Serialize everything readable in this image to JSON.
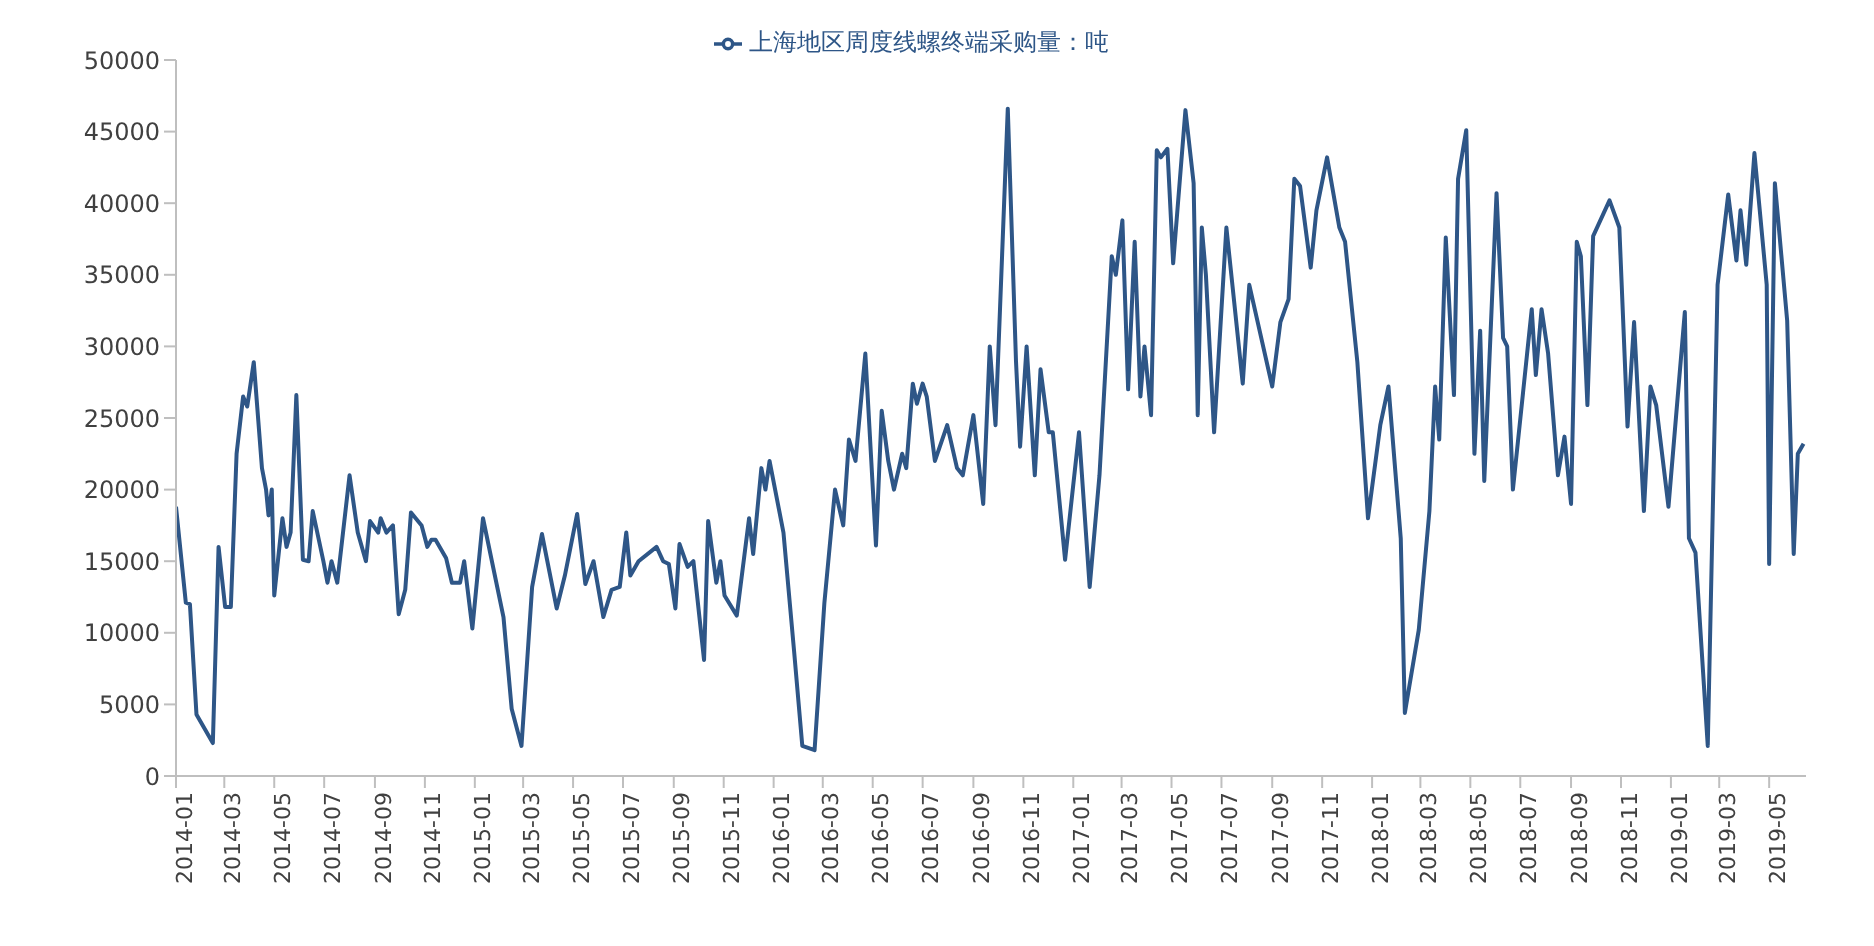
{
  "chart_data": {
    "type": "line",
    "legend": "top",
    "marker": "none",
    "line_style": "solid",
    "grid": false,
    "xlim": [
      "2014-01-01",
      "2019-06-15"
    ],
    "xticks": [
      "2014-01",
      "2014-03",
      "2014-05",
      "2014-07",
      "2014-09",
      "2014-11",
      "2015-01",
      "2015-03",
      "2015-05",
      "2015-07",
      "2015-09",
      "2015-11",
      "2016-01",
      "2016-03",
      "2016-05",
      "2016-07",
      "2016-09",
      "2016-11",
      "2017-01",
      "2017-03",
      "2017-05",
      "2017-07",
      "2017-09",
      "2017-11",
      "2018-01",
      "2018-03",
      "2018-05",
      "2018-07",
      "2018-09",
      "2018-11",
      "2019-01",
      "2019-03",
      "2019-05"
    ],
    "ylim": [
      0,
      50000
    ],
    "yticks": [
      0,
      5000,
      10000,
      15000,
      20000,
      25000,
      30000,
      35000,
      40000,
      45000,
      50000
    ],
    "series": [
      {
        "name": "上海地区周度线螺终端采购量：吨",
        "color": "#2e5687",
        "x": [
          "2014-01-01",
          "2014-01-13",
          "2014-01-18",
          "2014-01-26",
          "2014-02-15",
          "2014-02-22",
          "2014-03-02",
          "2014-03-09",
          "2014-03-16",
          "2014-03-24",
          "2014-03-29",
          "2014-04-06",
          "2014-04-16",
          "2014-04-21",
          "2014-04-24",
          "2014-04-28",
          "2014-05-01",
          "2014-05-11",
          "2014-05-16",
          "2014-05-21",
          "2014-05-28",
          "2014-06-05",
          "2014-06-12",
          "2014-06-17",
          "2014-06-30",
          "2014-07-05",
          "2014-07-10",
          "2014-07-17",
          "2014-08-01",
          "2014-08-11",
          "2014-08-21",
          "2014-08-26",
          "2014-09-05",
          "2014-09-08",
          "2014-09-15",
          "2014-09-23",
          "2014-09-30",
          "2014-10-08",
          "2014-10-15",
          "2014-10-28",
          "2014-11-04",
          "2014-11-09",
          "2014-11-14",
          "2014-11-27",
          "2014-12-04",
          "2014-12-14",
          "2014-12-19",
          "2014-12-29",
          "2015-01-11",
          "2015-02-05",
          "2015-02-15",
          "2015-02-27",
          "2015-03-12",
          "2015-03-24",
          "2015-04-11",
          "2015-04-21",
          "2015-05-06",
          "2015-05-16",
          "2015-05-26",
          "2015-06-07",
          "2015-06-17",
          "2015-06-27",
          "2015-07-05",
          "2015-07-10",
          "2015-07-20",
          "2015-08-11",
          "2015-08-19",
          "2015-08-26",
          "2015-09-03",
          "2015-09-08",
          "2015-09-18",
          "2015-09-25",
          "2015-10-08",
          "2015-10-13",
          "2015-10-23",
          "2015-10-28",
          "2015-11-02",
          "2015-11-17",
          "2015-12-02",
          "2015-12-07",
          "2015-12-17",
          "2015-12-22",
          "2015-12-27",
          "2016-01-13",
          "2016-01-26",
          "2016-02-05",
          "2016-02-20",
          "2016-03-03",
          "2016-03-16",
          "2016-03-26",
          "2016-04-02",
          "2016-04-10",
          "2016-04-22",
          "2016-05-05",
          "2016-05-12",
          "2016-05-20",
          "2016-05-27",
          "2016-06-06",
          "2016-06-11",
          "2016-06-19",
          "2016-06-24",
          "2016-07-01",
          "2016-07-06",
          "2016-07-16",
          "2016-07-31",
          "2016-08-12",
          "2016-08-19",
          "2016-09-01",
          "2016-09-13",
          "2016-09-21",
          "2016-09-28",
          "2016-10-13",
          "2016-10-23",
          "2016-10-28",
          "2016-11-05",
          "2016-11-15",
          "2016-11-22",
          "2016-12-02",
          "2016-12-07",
          "2016-12-22",
          "2017-01-08",
          "2017-01-21",
          "2017-02-02",
          "2017-02-17",
          "2017-02-22",
          "2017-03-02",
          "2017-03-09",
          "2017-03-17",
          "2017-03-24",
          "2017-03-29",
          "2017-04-06",
          "2017-04-13",
          "2017-04-18",
          "2017-04-26",
          "2017-05-03",
          "2017-05-18",
          "2017-05-28",
          "2017-06-02",
          "2017-06-07",
          "2017-06-12",
          "2017-06-22",
          "2017-07-07",
          "2017-07-27",
          "2017-08-04",
          "2017-09-01",
          "2017-09-11",
          "2017-09-21",
          "2017-09-28",
          "2017-10-05",
          "2017-10-18",
          "2017-10-25",
          "2017-11-07",
          "2017-11-22",
          "2017-11-29",
          "2017-12-14",
          "2017-12-27",
          "2018-01-11",
          "2018-01-21",
          "2018-02-05",
          "2018-02-10",
          "2018-02-27",
          "2018-03-12",
          "2018-03-19",
          "2018-03-24",
          "2018-04-01",
          "2018-04-11",
          "2018-04-16",
          "2018-04-26",
          "2018-05-06",
          "2018-05-13",
          "2018-05-18",
          "2018-06-02",
          "2018-06-10",
          "2018-06-15",
          "2018-06-22",
          "2018-07-15",
          "2018-07-20",
          "2018-07-27",
          "2018-08-04",
          "2018-08-16",
          "2018-08-24",
          "2018-09-01",
          "2018-09-08",
          "2018-09-13",
          "2018-09-21",
          "2018-09-28",
          "2018-10-18",
          "2018-10-30",
          "2018-11-09",
          "2018-11-17",
          "2018-11-29",
          "2018-12-07",
          "2018-12-14",
          "2018-12-29",
          "2019-01-18",
          "2019-01-23",
          "2019-01-31",
          "2019-02-15",
          "2019-02-27",
          "2019-03-12",
          "2019-03-22",
          "2019-03-27",
          "2019-04-03",
          "2019-04-13",
          "2019-04-28",
          "2019-05-01",
          "2019-05-08",
          "2019-05-23",
          "2019-05-31",
          "2019-06-05",
          "2019-06-12"
        ],
        "values": [
          18800,
          12100,
          12000,
          4300,
          2300,
          16000,
          11800,
          11800,
          22500,
          26500,
          25800,
          28900,
          21500,
          20000,
          18200,
          20000,
          12600,
          18000,
          16000,
          17000,
          26600,
          15100,
          15000,
          18500,
          15000,
          13500,
          15000,
          13500,
          21000,
          17000,
          15000,
          17800,
          17000,
          18000,
          17000,
          17500,
          11300,
          13000,
          18400,
          17500,
          16000,
          16500,
          16500,
          15200,
          13500,
          13500,
          15000,
          10300,
          18000,
          11100,
          4700,
          2100,
          13200,
          16900,
          11700,
          14000,
          18300,
          13400,
          15000,
          11100,
          13000,
          13200,
          17000,
          14000,
          15000,
          16000,
          15000,
          14800,
          11700,
          16200,
          14600,
          15000,
          8100,
          17800,
          13500,
          15000,
          12600,
          11200,
          18000,
          15500,
          21500,
          20000,
          22000,
          17000,
          8700,
          2100,
          1800,
          12100,
          20000,
          17500,
          23500,
          22000,
          29500,
          16100,
          25500,
          22000,
          20000,
          22500,
          21500,
          27400,
          26000,
          27400,
          26500,
          22000,
          24500,
          21500,
          21000,
          25200,
          19000,
          30000,
          24500,
          46600,
          29000,
          23000,
          30000,
          21000,
          28400,
          24000,
          24000,
          15100,
          24000,
          13200,
          21000,
          36300,
          35000,
          38800,
          27000,
          37300,
          26500,
          30000,
          25200,
          43700,
          43200,
          43800,
          35800,
          46500,
          41400,
          25200,
          38300,
          35000,
          24000,
          38300,
          27400,
          34300,
          27200,
          31700,
          33300,
          41700,
          41200,
          35500,
          39500,
          43200,
          38300,
          37300,
          28900,
          18000,
          24500,
          27200,
          16600,
          4400,
          10200,
          18500,
          27200,
          23500,
          37600,
          26600,
          41700,
          45100,
          22500,
          31100,
          20600,
          40700,
          30600,
          30000,
          20000,
          32600,
          28000,
          32600,
          29500,
          21000,
          23700,
          19000,
          37300,
          36300,
          25900,
          37700,
          40200,
          38300,
          24400,
          31700,
          18500,
          27200,
          25900,
          18800,
          32400,
          16600,
          15600,
          2100,
          34300,
          40600,
          36000,
          39500,
          35700,
          43500,
          34300,
          14800,
          41400,
          31800,
          15500,
          22500,
          23200
        ]
      }
    ]
  }
}
